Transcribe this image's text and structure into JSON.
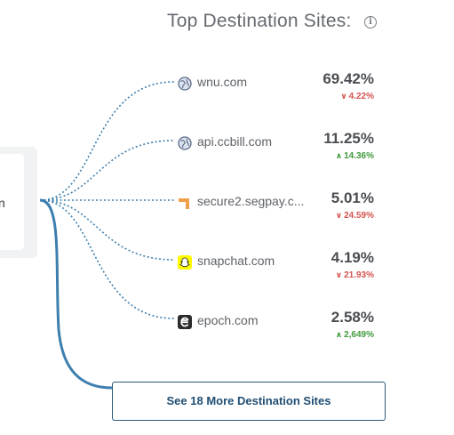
{
  "panel": {
    "title": "Top Destination Sites:",
    "info_icon": "i",
    "source_label": "n"
  },
  "sites": [
    {
      "name": "wnu.com",
      "share": "69.42%",
      "change": "4.22%",
      "direction": "down",
      "icon": "globe-icon"
    },
    {
      "name": "api.ccbill.com",
      "share": "11.25%",
      "change": "14.36%",
      "direction": "up",
      "icon": "globe-icon"
    },
    {
      "name": "secure2.segpay.c...",
      "share": "5.01%",
      "change": "24.59%",
      "direction": "down",
      "icon": "segpay-logo-icon"
    },
    {
      "name": "snapchat.com",
      "share": "4.19%",
      "change": "21.93%",
      "direction": "down",
      "icon": "snapchat-logo-icon"
    },
    {
      "name": "epoch.com",
      "share": "2.58%",
      "change": "2,649%",
      "direction": "up",
      "icon": "epoch-logo-icon"
    }
  ],
  "more_button": {
    "label": "See 18 More Destination Sites"
  },
  "colors": {
    "connector": "#3d7fae",
    "down": "#d4534f",
    "up": "#3f9a3c",
    "button_text": "#1f4e73"
  }
}
